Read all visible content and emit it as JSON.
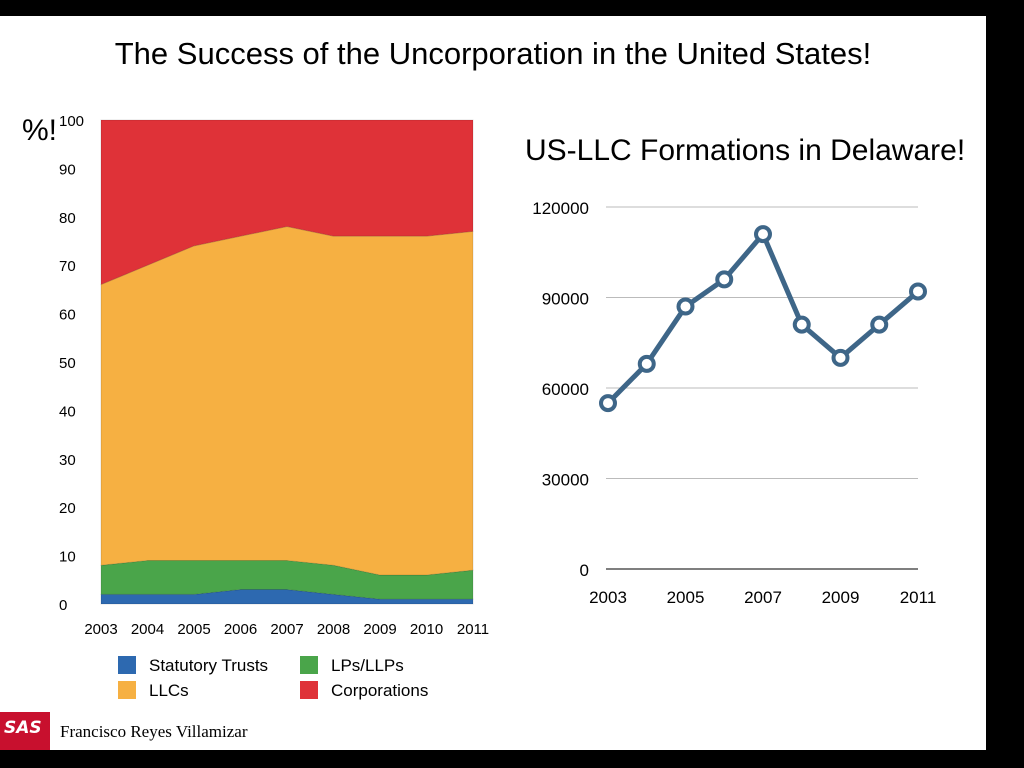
{
  "slide": {
    "title": "The Success of the Uncorporation in the United States!",
    "author": "Francisco Reyes Villamizar",
    "logo_text": "SAS"
  },
  "chart_data": [
    {
      "type": "area",
      "stacked": true,
      "ylabel": "%!",
      "ylim": [
        0,
        100
      ],
      "yticks": [
        0,
        10,
        20,
        30,
        40,
        50,
        60,
        70,
        80,
        90,
        100
      ],
      "x": [
        "2003",
        "2004",
        "2005",
        "2006",
        "2007",
        "2008",
        "2009",
        "2010",
        "2011"
      ],
      "series": [
        {
          "name": "Statutory Trusts",
          "color": "#2d69b0",
          "values": [
            2,
            2,
            2,
            3,
            3,
            2,
            1,
            1,
            1
          ]
        },
        {
          "name": "LPs/LLPs",
          "color": "#4aa54a",
          "values": [
            6,
            7,
            7,
            6,
            6,
            6,
            5,
            5,
            6
          ]
        },
        {
          "name": "LLCs",
          "color": "#f6b042",
          "values": [
            58,
            61,
            65,
            67,
            69,
            68,
            70,
            70,
            70
          ]
        },
        {
          "name": "Corporations",
          "color": "#df3238",
          "values": [
            34,
            30,
            26,
            24,
            22,
            24,
            24,
            24,
            23
          ]
        }
      ],
      "legend": "bottom"
    },
    {
      "type": "line",
      "title": "US-LLC Formations in Delaware!",
      "ylim": [
        0,
        120000
      ],
      "yticks": [
        0,
        30000,
        60000,
        90000,
        120000
      ],
      "xticks": [
        "2003",
        "2005",
        "2007",
        "2009",
        "2011"
      ],
      "x": [
        2003,
        2004,
        2005,
        2006,
        2007,
        2008,
        2009,
        2010,
        2011
      ],
      "series": [
        {
          "color": "#3e6688",
          "values": [
            55000,
            68000,
            87000,
            96000,
            111000,
            81000,
            70000,
            81000,
            92000
          ]
        }
      ],
      "grid": true
    }
  ]
}
